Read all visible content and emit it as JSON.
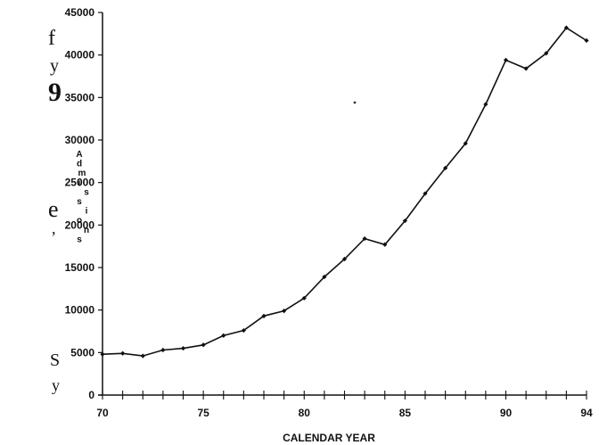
{
  "margin_text": [
    "f",
    "y",
    "9",
    "e",
    ",",
    "S",
    "y"
  ],
  "chart_data": {
    "type": "line",
    "title": "",
    "xlabel": "CALENDAR YEAR",
    "ylabel": "Admissions",
    "xlim": [
      70,
      94
    ],
    "ylim": [
      0,
      45000
    ],
    "x_ticks": [
      "70",
      "75",
      "80",
      "85",
      "90",
      "94"
    ],
    "y_ticks": [
      "0",
      "5000",
      "10000",
      "15000",
      "20000",
      "25000",
      "30000",
      "35000",
      "40000",
      "45000"
    ],
    "grid": false,
    "legend": "none",
    "line_color": "#111111",
    "x": [
      70,
      71,
      72,
      73,
      74,
      75,
      76,
      77,
      78,
      79,
      80,
      81,
      82,
      83,
      84,
      85,
      86,
      87,
      88,
      89,
      90,
      91,
      92,
      93,
      94
    ],
    "series": [
      {
        "values": [
          4800,
          4900,
          4600,
          5300,
          5500,
          5900,
          7000,
          7600,
          9300,
          9900,
          11400,
          13900,
          16000,
          18400,
          17700,
          20500,
          23700,
          26700,
          29600,
          34200,
          39400,
          38400,
          40200,
          43200,
          41700
        ]
      }
    ]
  }
}
